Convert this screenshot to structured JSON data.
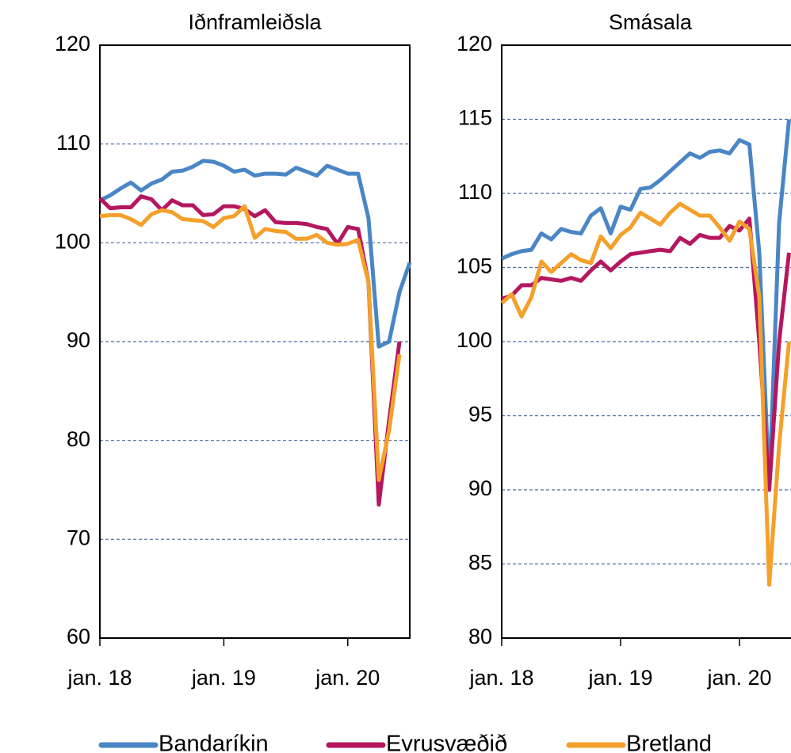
{
  "chart_data": [
    {
      "type": "line",
      "title": "Iðnframleiðsla",
      "categories": [
        "jan. 18",
        null,
        null,
        null,
        null,
        null,
        null,
        null,
        null,
        null,
        null,
        null,
        "jan. 19",
        null,
        null,
        null,
        null,
        null,
        null,
        null,
        null,
        null,
        null,
        null,
        "jan. 20",
        null,
        null,
        null,
        null,
        null,
        null
      ],
      "series": [
        {
          "name": "Bandaríkin",
          "color": "#4a86c5",
          "values": [
            104.3,
            104.8,
            105.5,
            106.1,
            105.3,
            106,
            106.4,
            107.2,
            107.3,
            107.7,
            108.3,
            108.2,
            107.8,
            107.2,
            107.4,
            106.8,
            107,
            107,
            106.9,
            107.6,
            107.2,
            106.8,
            107.8,
            107.4,
            107,
            107,
            102.5,
            89.5,
            90,
            95,
            98
          ]
        },
        {
          "name": "Evrusvæðið",
          "color": "#b5175f",
          "values": [
            104.5,
            103.5,
            103.6,
            103.6,
            104.7,
            104.4,
            103.3,
            104.3,
            103.8,
            103.8,
            102.8,
            102.9,
            103.7,
            103.7,
            103.4,
            102.7,
            103.3,
            102.1,
            102,
            102,
            101.9,
            101.6,
            101.4,
            99.9,
            101.6,
            101.4,
            96,
            73.5,
            82,
            90,
            null
          ]
        },
        {
          "name": "Bretland",
          "color": "#f4a02a",
          "values": [
            102.7,
            102.8,
            102.8,
            102.4,
            101.8,
            102.9,
            103.3,
            103.1,
            102.4,
            102.3,
            102.2,
            101.6,
            102.5,
            102.7,
            103.7,
            100.5,
            101.4,
            101.2,
            101.1,
            100.4,
            100.4,
            100.8,
            100,
            99.8,
            99.9,
            100.3,
            96,
            76,
            81,
            88.7,
            null
          ]
        }
      ],
      "ylim": [
        60,
        120
      ],
      "yticks": [
        60,
        70,
        80,
        90,
        100,
        110,
        120
      ],
      "grid": true
    },
    {
      "type": "line",
      "title": "Smásala",
      "categories": [
        "jan. 18",
        null,
        null,
        null,
        null,
        null,
        null,
        null,
        null,
        null,
        null,
        null,
        "jan. 19",
        null,
        null,
        null,
        null,
        null,
        null,
        null,
        null,
        null,
        null,
        null,
        "jan. 20",
        null,
        null,
        null,
        null,
        null,
        null
      ],
      "series": [
        {
          "color": "#4a86c5",
          "values": [
            105.6,
            105.9,
            106.1,
            106.2,
            107.3,
            106.9,
            107.6,
            107.4,
            107.3,
            108.5,
            109,
            107.3,
            109.1,
            108.9,
            110.3,
            110.4,
            110.9,
            111.5,
            112.1,
            112.7,
            112.4,
            112.8,
            112.9,
            112.7,
            113.6,
            113.3,
            106,
            90,
            108,
            115,
            null
          ]
        },
        {
          "color": "#b5175f",
          "values": [
            102.9,
            103.1,
            103.8,
            103.8,
            104.3,
            104.2,
            104.1,
            104.3,
            104.1,
            104.8,
            105.4,
            104.8,
            105.4,
            105.9,
            106,
            106.1,
            106.2,
            106.1,
            107,
            106.6,
            107.2,
            107,
            107,
            107.8,
            107.5,
            108.3,
            100,
            90,
            100,
            106,
            null
          ]
        },
        {
          "color": "#f4a02a",
          "values": [
            102.6,
            103.2,
            101.7,
            103,
            105.4,
            104.7,
            105.3,
            105.9,
            105.5,
            105.3,
            107.1,
            106.3,
            107.2,
            107.7,
            108.7,
            108.3,
            107.9,
            108.7,
            109.3,
            108.9,
            108.5,
            108.5,
            107.7,
            106.8,
            108.1,
            107.6,
            103,
            83.6,
            93,
            100,
            null
          ]
        }
      ],
      "ylim": [
        80,
        120
      ],
      "yticks": [
        80,
        85,
        90,
        95,
        100,
        105,
        110,
        115,
        120
      ],
      "grid": true
    }
  ]
}
